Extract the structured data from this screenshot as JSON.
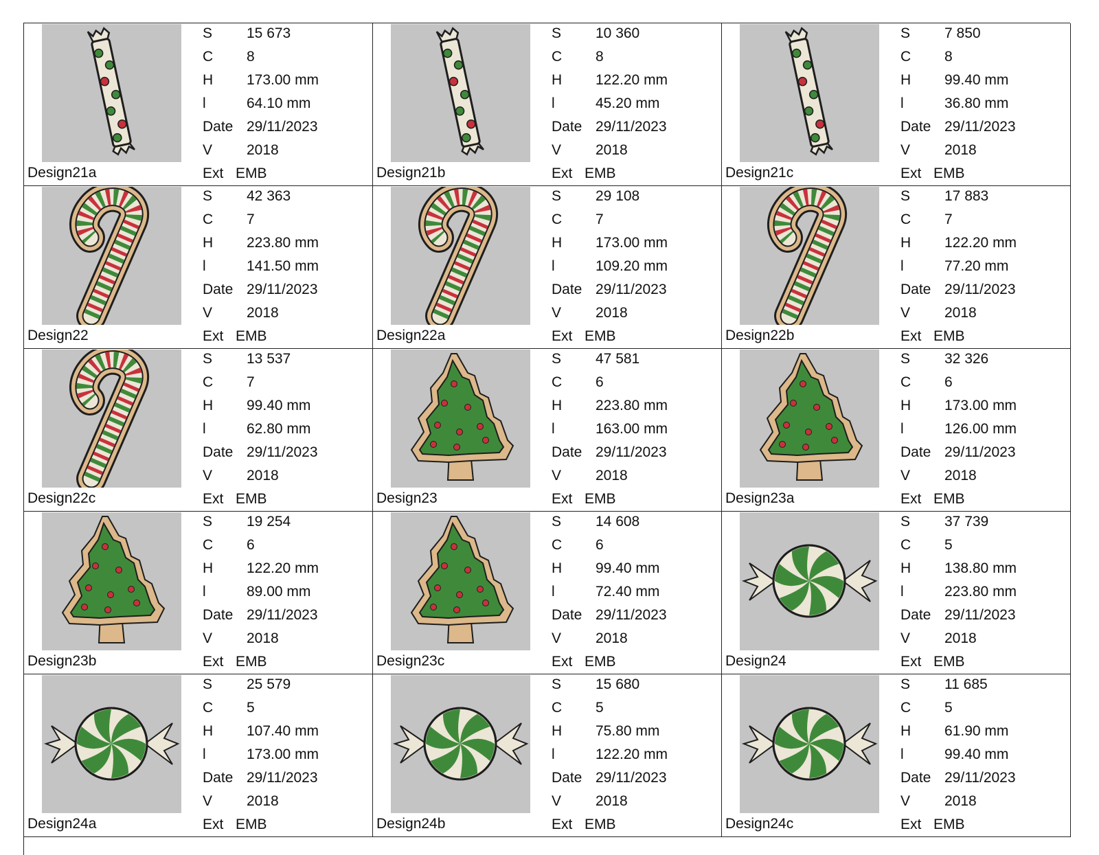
{
  "designs": [
    {
      "name": "Design21a",
      "motif": "candy-stick",
      "stitches": "15 673",
      "colors": "8",
      "height": "173.00 mm",
      "width": "64.10 mm",
      "date": "29/11/2023",
      "version": "2018",
      "ext": "EMB"
    },
    {
      "name": "Design21b",
      "motif": "candy-stick",
      "stitches": "10 360",
      "colors": "8",
      "height": "122.20 mm",
      "width": "45.20 mm",
      "date": "29/11/2023",
      "version": "2018",
      "ext": "EMB"
    },
    {
      "name": "Design21c",
      "motif": "candy-stick",
      "stitches": "7 850",
      "colors": "8",
      "height": "99.40 mm",
      "width": "36.80 mm",
      "date": "29/11/2023",
      "version": "2018",
      "ext": "EMB"
    },
    {
      "name": "Design22",
      "motif": "candy-cane",
      "stitches": "42 363",
      "colors": "7",
      "height": "223.80 mm",
      "width": "141.50 mm",
      "date": "29/11/2023",
      "version": "2018",
      "ext": "EMB"
    },
    {
      "name": "Design22a",
      "motif": "candy-cane",
      "stitches": "29 108",
      "colors": "7",
      "height": "173.00 mm",
      "width": "109.20 mm",
      "date": "29/11/2023",
      "version": "2018",
      "ext": "EMB"
    },
    {
      "name": "Design22b",
      "motif": "candy-cane",
      "stitches": "17 883",
      "colors": "7",
      "height": "122.20 mm",
      "width": "77.20 mm",
      "date": "29/11/2023",
      "version": "2018",
      "ext": "EMB"
    },
    {
      "name": "Design22c",
      "motif": "candy-cane",
      "stitches": "13 537",
      "colors": "7",
      "height": "99.40 mm",
      "width": "62.80 mm",
      "date": "29/11/2023",
      "version": "2018",
      "ext": "EMB"
    },
    {
      "name": "Design23",
      "motif": "tree-cookie",
      "stitches": "47 581",
      "colors": "6",
      "height": "223.80 mm",
      "width": "163.00 mm",
      "date": "29/11/2023",
      "version": "2018",
      "ext": "EMB"
    },
    {
      "name": "Design23a",
      "motif": "tree-cookie",
      "stitches": "32 326",
      "colors": "6",
      "height": "173.00 mm",
      "width": "126.00 mm",
      "date": "29/11/2023",
      "version": "2018",
      "ext": "EMB"
    },
    {
      "name": "Design23b",
      "motif": "tree-cookie",
      "stitches": "19 254",
      "colors": "6",
      "height": "122.20 mm",
      "width": "89.00 mm",
      "date": "29/11/2023",
      "version": "2018",
      "ext": "EMB"
    },
    {
      "name": "Design23c",
      "motif": "tree-cookie",
      "stitches": "14 608",
      "colors": "6",
      "height": "99.40 mm",
      "width": "72.40 mm",
      "date": "29/11/2023",
      "version": "2018",
      "ext": "EMB"
    },
    {
      "name": "Design24",
      "motif": "peppermint-candy",
      "stitches": "37 739",
      "colors": "5",
      "height": "138.80 mm",
      "width": "223.80 mm",
      "date": "29/11/2023",
      "version": "2018",
      "ext": "EMB"
    },
    {
      "name": "Design24a",
      "motif": "peppermint-candy",
      "stitches": "25 579",
      "colors": "5",
      "height": "107.40 mm",
      "width": "173.00 mm",
      "date": "29/11/2023",
      "version": "2018",
      "ext": "EMB"
    },
    {
      "name": "Design24b",
      "motif": "peppermint-candy",
      "stitches": "15 680",
      "colors": "5",
      "height": "75.80 mm",
      "width": "122.20 mm",
      "date": "29/11/2023",
      "version": "2018",
      "ext": "EMB"
    },
    {
      "name": "Design24c",
      "motif": "peppermint-candy",
      "stitches": "11 685",
      "colors": "5",
      "height": "61.90 mm",
      "width": "99.40 mm",
      "date": "29/11/2023",
      "version": "2018",
      "ext": "EMB"
    }
  ],
  "labels": {
    "stitches": "S",
    "colors": "C",
    "height": "H",
    "width": "l",
    "date": "Date",
    "version": "V",
    "ext": "Ext"
  },
  "colors": {
    "thumb_bg": "#c4c4c4",
    "green": "#3f8a3a",
    "red": "#c8323c",
    "cream": "#ece6d6",
    "cookie": "#dcb88a",
    "outline": "#1e1e1e"
  }
}
